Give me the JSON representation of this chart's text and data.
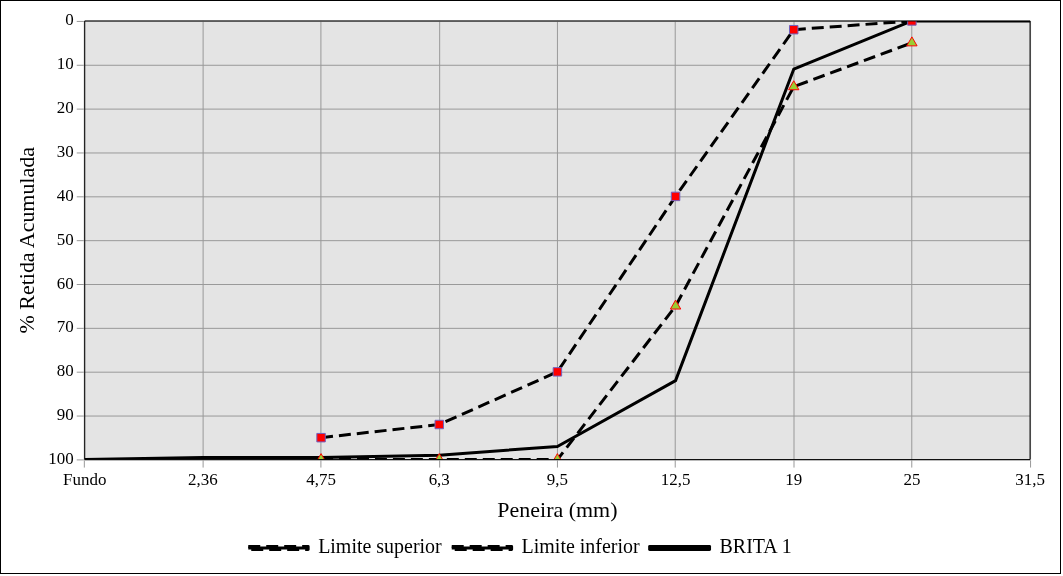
{
  "chart_data": {
    "type": "line",
    "xlabel": "Peneira (mm)",
    "ylabel": "% Retida Acumulada",
    "categories": [
      "Fundo",
      "2,36",
      "4,75",
      "6,3",
      "9,5",
      "12,5",
      "19",
      "25",
      "31,5"
    ],
    "series": [
      {
        "name": "Limite superior",
        "color": "#000000",
        "line_style": "dashed",
        "marker": "triangle",
        "colors": [
          null,
          null,
          "#9acd32",
          "#9acd32",
          "#9acd32",
          "#9acd32",
          "#9acd32",
          "#9acd32",
          null
        ],
        "values": [
          null,
          null,
          100,
          100,
          100,
          65,
          15,
          5,
          null
        ]
      },
      {
        "name": "Limite inferior",
        "color": "#000000",
        "line_style": "dashed",
        "marker": "square",
        "colors": [
          null,
          null,
          "#ff0000",
          "#ff0000",
          "#ff0000",
          "#ff0000",
          "#ff0000",
          "#ff0000",
          null
        ],
        "values": [
          null,
          null,
          95,
          92,
          80,
          40,
          2,
          0,
          null
        ]
      },
      {
        "name": "BRITA 1",
        "color": "#000000",
        "line_style": "solid",
        "marker": "none",
        "values": [
          100,
          99.5,
          99.5,
          99,
          97,
          82,
          11,
          0,
          0
        ]
      }
    ],
    "ylim": [
      100,
      0
    ],
    "yticks": [
      0,
      10,
      20,
      30,
      40,
      50,
      60,
      70,
      80,
      90,
      100
    ],
    "grid": true,
    "legend": "bottom"
  }
}
